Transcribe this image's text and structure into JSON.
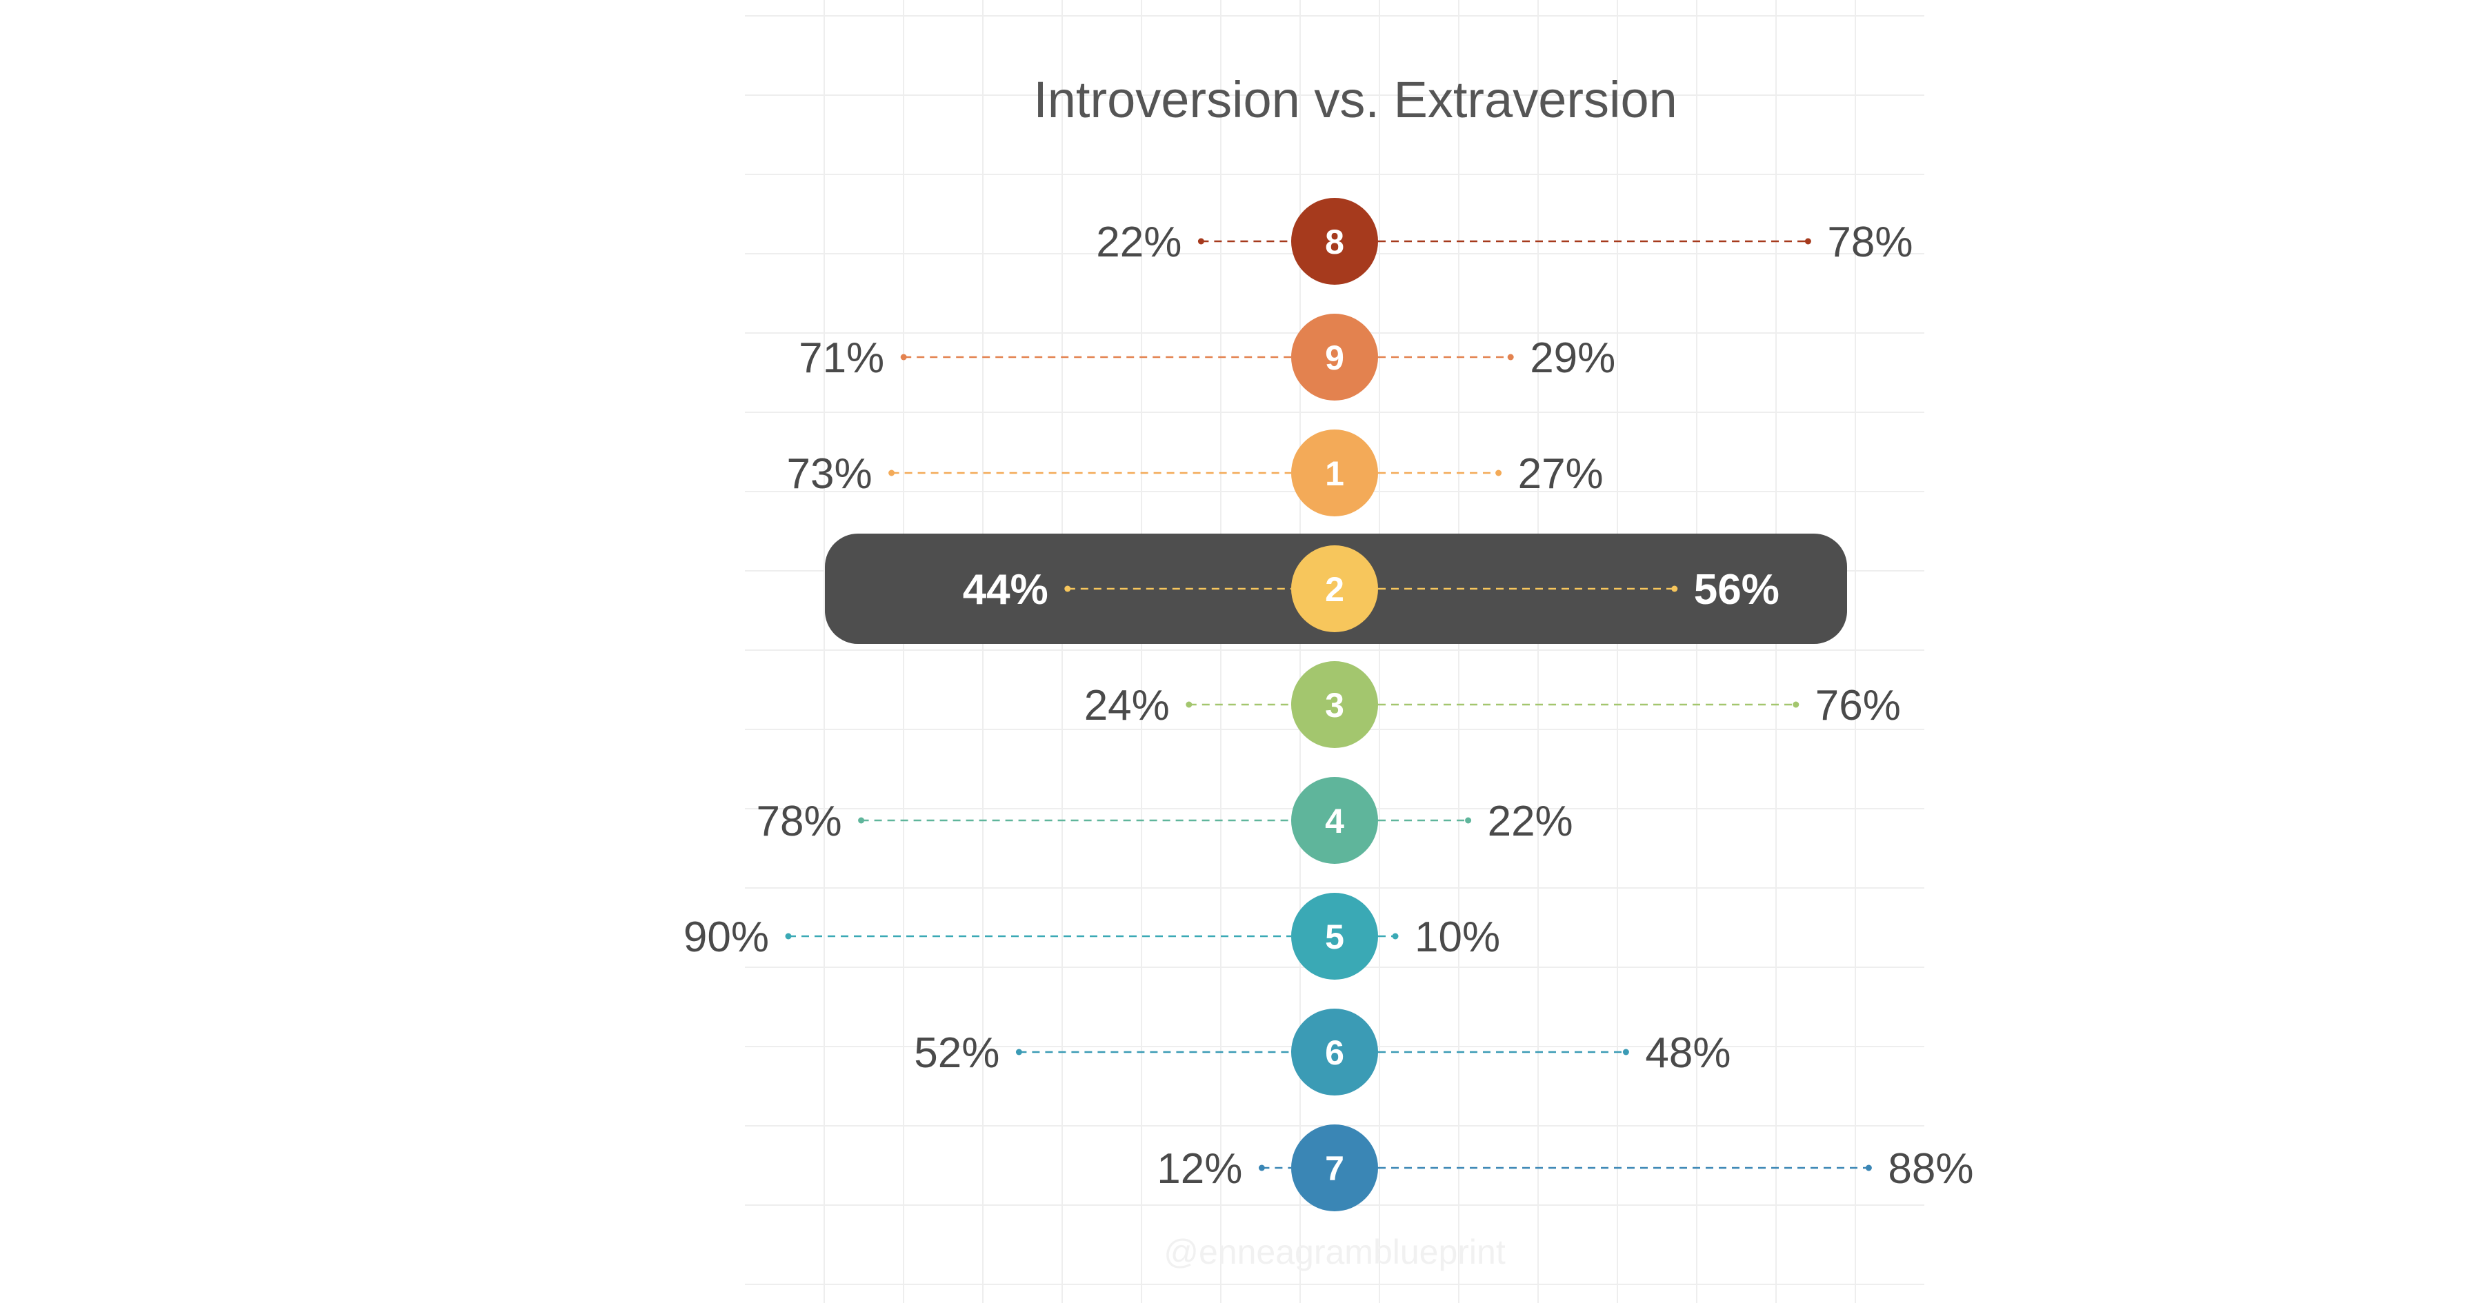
{
  "chart_data": {
    "type": "diverging-dot",
    "title": "Introversion vs. Extraversion",
    "left_category": "",
    "right_category": "",
    "xlim": [
      0,
      100
    ],
    "highlighted": "2",
    "rows": [
      {
        "type": "8",
        "introversion": 22,
        "extraversion": 78,
        "introversion_label": "22%",
        "extraversion_label": "78%",
        "color": "#A63A1D"
      },
      {
        "type": "9",
        "introversion": 71,
        "extraversion": 29,
        "introversion_label": "71%",
        "extraversion_label": "29%",
        "color": "#E3824F"
      },
      {
        "type": "1",
        "introversion": 73,
        "extraversion": 27,
        "introversion_label": "73%",
        "extraversion_label": "27%",
        "color": "#F3AA58"
      },
      {
        "type": "2",
        "introversion": 44,
        "extraversion": 56,
        "introversion_label": "44%",
        "extraversion_label": "56%",
        "color": "#F7C65C"
      },
      {
        "type": "3",
        "introversion": 24,
        "extraversion": 76,
        "introversion_label": "24%",
        "extraversion_label": "76%",
        "color": "#A3C66E"
      },
      {
        "type": "4",
        "introversion": 78,
        "extraversion": 22,
        "introversion_label": "78%",
        "extraversion_label": "22%",
        "color": "#5FB59B"
      },
      {
        "type": "5",
        "introversion": 90,
        "extraversion": 10,
        "introversion_label": "90%",
        "extraversion_label": "10%",
        "color": "#3AA9B5"
      },
      {
        "type": "6",
        "introversion": 52,
        "extraversion": 48,
        "introversion_label": "52%",
        "extraversion_label": "48%",
        "color": "#3B9BB5"
      },
      {
        "type": "7",
        "introversion": 12,
        "extraversion": 88,
        "introversion_label": "12%",
        "extraversion_label": "88%",
        "color": "#3A86B5"
      }
    ],
    "highlight_color": "#4E4E4E",
    "grid": true,
    "grid_color": "#EEEEEE"
  },
  "watermark": "@enneagramblueprint"
}
